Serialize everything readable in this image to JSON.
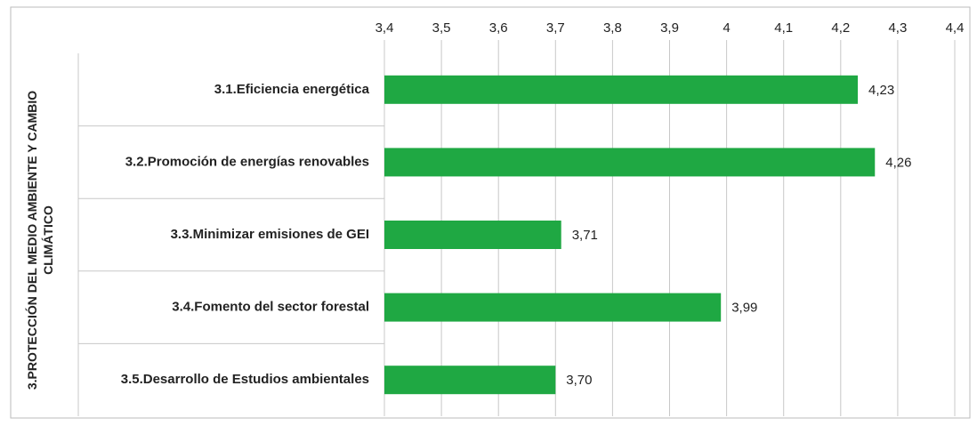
{
  "chart_data": {
    "type": "bar",
    "orientation": "horizontal",
    "group_label": "3.PROTECCIÓN DEL MEDIO AMBIENTE Y CAMBIO CLIMÁTICO",
    "categories": [
      "3.1.Eficiencia energética",
      "3.2.Promoción de energías renovables",
      "3.3.Minimizar emisiones de GEI",
      "3.4.Fomento del sector forestal",
      "3.5.Desarrollo de Estudios ambientales"
    ],
    "values": [
      4.23,
      4.26,
      3.71,
      3.99,
      3.7
    ],
    "value_labels": [
      "4,23",
      "4,26",
      "3,71",
      "3,99",
      "3,70"
    ],
    "color": "#1fa843",
    "xlim": [
      3.4,
      4.4
    ],
    "xticks": [
      {
        "value": 3.4,
        "label": "3,4"
      },
      {
        "value": 3.5,
        "label": "3,5"
      },
      {
        "value": 3.6,
        "label": "3,6"
      },
      {
        "value": 3.7,
        "label": "3,7"
      },
      {
        "value": 3.8,
        "label": "3,8"
      },
      {
        "value": 3.9,
        "label": "3,9"
      },
      4,
      {
        "value": 4.1,
        "label": "4,1"
      },
      {
        "value": 4.2,
        "label": "4,2"
      },
      {
        "value": 4.3,
        "label": "4,3"
      },
      {
        "value": 4.4,
        "label": "4,4"
      }
    ],
    "grid": true
  }
}
